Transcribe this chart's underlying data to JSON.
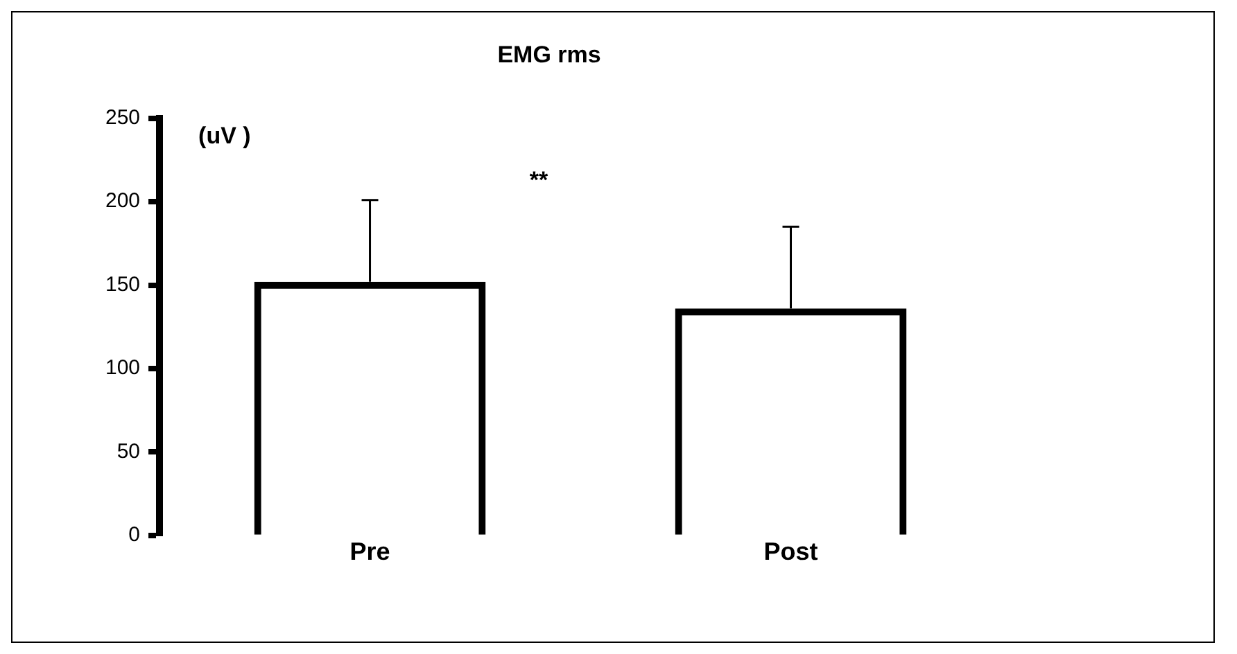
{
  "chart_data": {
    "type": "bar",
    "title": "EMG rms",
    "ylabel": "(uV )",
    "categories": [
      "Pre",
      "Post"
    ],
    "values": [
      152,
      136
    ],
    "errors": [
      [
        152,
        201
      ],
      [
        136,
        185
      ]
    ],
    "color": "#000000",
    "ylim": [
      0,
      250
    ],
    "yticks": [
      0,
      50,
      100,
      150,
      200,
      250
    ],
    "grid": false,
    "legend": false,
    "annotations": [
      "**"
    ]
  }
}
